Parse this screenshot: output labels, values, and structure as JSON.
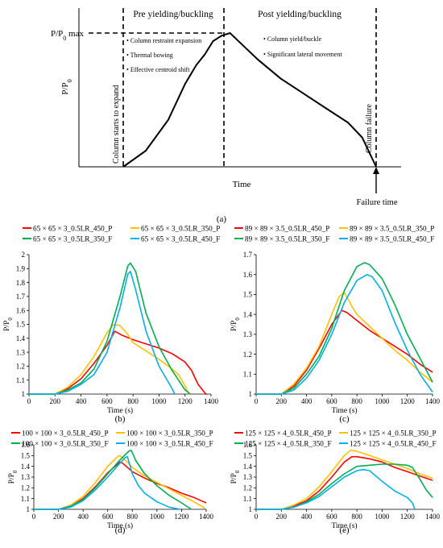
{
  "chart_data": [
    {
      "panel": "a",
      "type": "line",
      "title": "",
      "xlabel": "Time",
      "ylabel": "P/P",
      "ylabel_sub": "0",
      "caption": "(a)",
      "peak_label": "P/P",
      "peak_label_sub": "0",
      "peak_label_suffix": " max",
      "regions": [
        "Pre yielding/buckling",
        "Post yielding/buckling"
      ],
      "pre_notes": [
        "Column restraint expansion",
        "Thermal bowing",
        "Effective centroid shift"
      ],
      "post_notes": [
        "Column yield/buckle",
        "Significant lateral movement"
      ],
      "left_vline_label": "Column starts to expand",
      "right_vline_label": "Column failure",
      "failure_label": "Failure time",
      "curve": [
        [
          0.1,
          0.0
        ],
        [
          0.18,
          0.12
        ],
        [
          0.26,
          0.35
        ],
        [
          0.32,
          0.62
        ],
        [
          0.36,
          0.76
        ],
        [
          0.39,
          0.84
        ],
        [
          0.42,
          0.94
        ],
        [
          0.45,
          0.98
        ],
        [
          0.48,
          1.0
        ],
        [
          0.52,
          0.92
        ],
        [
          0.58,
          0.8
        ],
        [
          0.66,
          0.66
        ],
        [
          0.74,
          0.55
        ],
        [
          0.82,
          0.44
        ],
        [
          0.9,
          0.33
        ],
        [
          0.95,
          0.22
        ],
        [
          1.0,
          0.0
        ]
      ]
    },
    {
      "panel": "b",
      "type": "line",
      "xlabel": "Time (s)",
      "ylabel": "P/P",
      "ylabel_sub": "0",
      "caption": "(b)",
      "xlim": [
        0,
        1400
      ],
      "ylim": [
        1,
        2
      ],
      "xticks": [
        "0",
        "200",
        "400",
        "600",
        "800",
        "1000",
        "1200",
        "1400"
      ],
      "yticks": [
        "1",
        "1.1",
        "1.2",
        "1.3",
        "1.4",
        "1.5",
        "1.6",
        "1.7",
        "1.8",
        "1.9",
        "2"
      ],
      "series": [
        {
          "name": "65 × 65 × 3_0.5LR_450_P",
          "color": "#ff0000",
          "x": [
            0,
            200,
            300,
            400,
            500,
            600,
            660,
            720,
            800,
            900,
            1000,
            1100,
            1200,
            1250,
            1300,
            1360,
            1370
          ],
          "y": [
            1,
            1,
            1.04,
            1.11,
            1.22,
            1.35,
            1.45,
            1.42,
            1.39,
            1.36,
            1.33,
            1.29,
            1.23,
            1.17,
            1.07,
            1.0,
            1.0
          ]
        },
        {
          "name": "65 × 65 × 3_0.5LR_350_P",
          "color": "#ffc000",
          "x": [
            0,
            200,
            300,
            400,
            500,
            600,
            650,
            700,
            750,
            800,
            900,
            1000,
            1100,
            1150,
            1200,
            1230
          ],
          "y": [
            1,
            1,
            1.05,
            1.14,
            1.27,
            1.44,
            1.5,
            1.49,
            1.44,
            1.37,
            1.31,
            1.25,
            1.18,
            1.14,
            1.06,
            1.0
          ]
        },
        {
          "name": "65 × 65 × 3_0.5LR_350_F",
          "color": "#00b050",
          "x": [
            0,
            200,
            300,
            400,
            500,
            600,
            700,
            760,
            780,
            820,
            900,
            1000,
            1100,
            1200,
            1240
          ],
          "y": [
            1,
            1,
            1.03,
            1.08,
            1.18,
            1.38,
            1.7,
            1.92,
            1.94,
            1.88,
            1.58,
            1.34,
            1.17,
            1.03,
            1.0
          ]
        },
        {
          "name": "65 × 65 × 3_0.5LR_450_F",
          "color": "#00b0f0",
          "x": [
            0,
            200,
            300,
            400,
            500,
            600,
            700,
            760,
            780,
            820,
            900,
            1000,
            1100,
            1120
          ],
          "y": [
            1,
            1,
            1.02,
            1.07,
            1.14,
            1.3,
            1.62,
            1.86,
            1.88,
            1.75,
            1.45,
            1.2,
            1.04,
            1.0
          ]
        }
      ]
    },
    {
      "panel": "c",
      "type": "line",
      "xlabel": "Time (s)",
      "ylabel": "P/P",
      "ylabel_sub": "0",
      "caption": "(c)",
      "xlim": [
        0,
        1400
      ],
      "ylim": [
        1,
        1.7
      ],
      "xticks": [
        "0",
        "200",
        "400",
        "600",
        "800",
        "1000",
        "1200",
        "1400"
      ],
      "yticks": [
        "1",
        "1.1",
        "1.2",
        "1.3",
        "1.4",
        "1.5",
        "1.6",
        "1.7"
      ],
      "series": [
        {
          "name": "89 × 89 × 3.5_0.5LR_450_P",
          "color": "#ff0000",
          "x": [
            0,
            200,
            300,
            400,
            500,
            600,
            680,
            720,
            800,
            900,
            1000,
            1100,
            1200,
            1300,
            1400
          ],
          "y": [
            1,
            1,
            1.04,
            1.12,
            1.23,
            1.35,
            1.42,
            1.41,
            1.37,
            1.32,
            1.28,
            1.24,
            1.2,
            1.15,
            1.11
          ]
        },
        {
          "name": "89 × 89 × 3.5_0.5LR_350_P",
          "color": "#ffc000",
          "x": [
            0,
            200,
            300,
            400,
            500,
            600,
            660,
            700,
            760,
            800,
            900,
            1000,
            1100,
            1200,
            1300,
            1400
          ],
          "y": [
            1,
            1,
            1.05,
            1.13,
            1.24,
            1.4,
            1.49,
            1.51,
            1.44,
            1.4,
            1.34,
            1.28,
            1.22,
            1.17,
            1.11,
            1.06
          ]
        },
        {
          "name": "89 × 89 × 3.5_0.5LR_350_F",
          "color": "#00b050",
          "x": [
            0,
            200,
            300,
            400,
            500,
            600,
            700,
            800,
            860,
            900,
            1000,
            1100,
            1200,
            1300,
            1400
          ],
          "y": [
            1,
            1,
            1.03,
            1.1,
            1.19,
            1.33,
            1.52,
            1.64,
            1.66,
            1.65,
            1.58,
            1.45,
            1.3,
            1.18,
            1.06
          ]
        },
        {
          "name": "89 × 89 × 3.5_0.5LR_450_F",
          "color": "#00b0f0",
          "x": [
            0,
            200,
            300,
            400,
            500,
            600,
            700,
            800,
            880,
            920,
            1000,
            1100,
            1200,
            1300,
            1400
          ],
          "y": [
            1,
            1,
            1.02,
            1.08,
            1.17,
            1.3,
            1.46,
            1.57,
            1.6,
            1.59,
            1.52,
            1.36,
            1.22,
            1.1,
            1.01
          ]
        }
      ]
    },
    {
      "panel": "d",
      "type": "line",
      "xlabel": "Time (s)",
      "ylabel": "P/P",
      "ylabel_sub": "0",
      "caption": "(d)",
      "xlim": [
        0,
        1400
      ],
      "ylim": [
        1,
        1.6
      ],
      "xticks": [
        "0",
        "200",
        "400",
        "600",
        "800",
        "1000",
        "1200",
        "1400"
      ],
      "yticks": [
        "1",
        "1.1",
        "1.2",
        "1.3",
        "1.4",
        "1.5",
        "1.6"
      ],
      "series": [
        {
          "name": "100 × 100 × 3_0.5LR_450_P",
          "color": "#ff0000",
          "x": [
            0,
            200,
            300,
            400,
            500,
            600,
            700,
            720,
            800,
            900,
            1000,
            1100,
            1200,
            1300,
            1400
          ],
          "y": [
            1,
            1,
            1.03,
            1.1,
            1.21,
            1.34,
            1.44,
            1.43,
            1.35,
            1.29,
            1.24,
            1.2,
            1.15,
            1.11,
            1.06
          ]
        },
        {
          "name": "100 × 100 × 3_0.5LR_350_P",
          "color": "#ffc000",
          "x": [
            0,
            200,
            300,
            400,
            500,
            600,
            680,
            700,
            760,
            800,
            900,
            1000,
            1100,
            1200,
            1300,
            1390
          ],
          "y": [
            1,
            1,
            1.04,
            1.12,
            1.25,
            1.4,
            1.49,
            1.5,
            1.44,
            1.39,
            1.31,
            1.25,
            1.19,
            1.13,
            1.07,
            1.01
          ]
        },
        {
          "name": "100 × 100 × 3_0.5LR_350_F",
          "color": "#00b050",
          "x": [
            0,
            200,
            300,
            400,
            500,
            600,
            700,
            770,
            790,
            830,
            900,
            1000,
            1100,
            1200,
            1280
          ],
          "y": [
            1,
            1,
            1.03,
            1.09,
            1.2,
            1.33,
            1.46,
            1.54,
            1.55,
            1.45,
            1.33,
            1.22,
            1.13,
            1.06,
            1.0
          ]
        },
        {
          "name": "100 × 100 × 3_0.5LR_450_F",
          "color": "#00b0f0",
          "x": [
            0,
            200,
            300,
            400,
            500,
            600,
            700,
            740,
            760,
            800,
            850,
            900,
            1000,
            1100,
            1190
          ],
          "y": [
            1,
            1,
            1.02,
            1.08,
            1.18,
            1.3,
            1.43,
            1.48,
            1.49,
            1.33,
            1.22,
            1.15,
            1.07,
            1.02,
            1.0
          ]
        }
      ]
    },
    {
      "panel": "e",
      "type": "line",
      "xlabel": "Time (s)",
      "ylabel": "P/P",
      "ylabel_sub": "0",
      "caption": "(e)",
      "xlim": [
        0,
        1400
      ],
      "ylim": [
        1,
        1.6
      ],
      "xticks": [
        "0",
        "200",
        "400",
        "600",
        "800",
        "1000",
        "1200",
        "1400"
      ],
      "yticks": [
        "1",
        "1.1",
        "1.2",
        "1.3",
        "1.4",
        "1.5",
        "1.6"
      ],
      "series": [
        {
          "name": "125 × 125 × 4_0.5LR_450_P",
          "color": "#ff0000",
          "x": [
            0,
            200,
            300,
            400,
            500,
            600,
            700,
            760,
            800,
            900,
            1000,
            1100,
            1200,
            1300,
            1400
          ],
          "y": [
            1,
            1,
            1.03,
            1.08,
            1.17,
            1.3,
            1.44,
            1.49,
            1.49,
            1.47,
            1.44,
            1.39,
            1.35,
            1.31,
            1.27
          ]
        },
        {
          "name": "125 × 125 × 4_0.5LR_350_P",
          "color": "#ffc000",
          "x": [
            0,
            200,
            300,
            400,
            500,
            600,
            700,
            750,
            800,
            900,
            1000,
            1100,
            1200,
            1300,
            1400
          ],
          "y": [
            1,
            1,
            1.04,
            1.1,
            1.21,
            1.35,
            1.5,
            1.55,
            1.54,
            1.5,
            1.46,
            1.42,
            1.38,
            1.33,
            1.29
          ]
        },
        {
          "name": "125 × 125 × 4_0.5LR_350_F",
          "color": "#00b050",
          "x": [
            0,
            200,
            300,
            400,
            500,
            600,
            700,
            800,
            900,
            1000,
            1100,
            1200,
            1240,
            1300,
            1350,
            1400
          ],
          "y": [
            1,
            1,
            1.02,
            1.07,
            1.14,
            1.24,
            1.33,
            1.4,
            1.41,
            1.42,
            1.42,
            1.41,
            1.39,
            1.28,
            1.18,
            1.11
          ]
        },
        {
          "name": "125 × 125 × 4_0.5LR_450_F",
          "color": "#00b0f0",
          "x": [
            0,
            200,
            300,
            400,
            500,
            600,
            700,
            800,
            850,
            900,
            1000,
            1100,
            1200,
            1240,
            1260
          ],
          "y": [
            1,
            1,
            1.02,
            1.06,
            1.12,
            1.21,
            1.3,
            1.36,
            1.37,
            1.36,
            1.26,
            1.17,
            1.11,
            1.06,
            1.0
          ]
        }
      ]
    }
  ]
}
